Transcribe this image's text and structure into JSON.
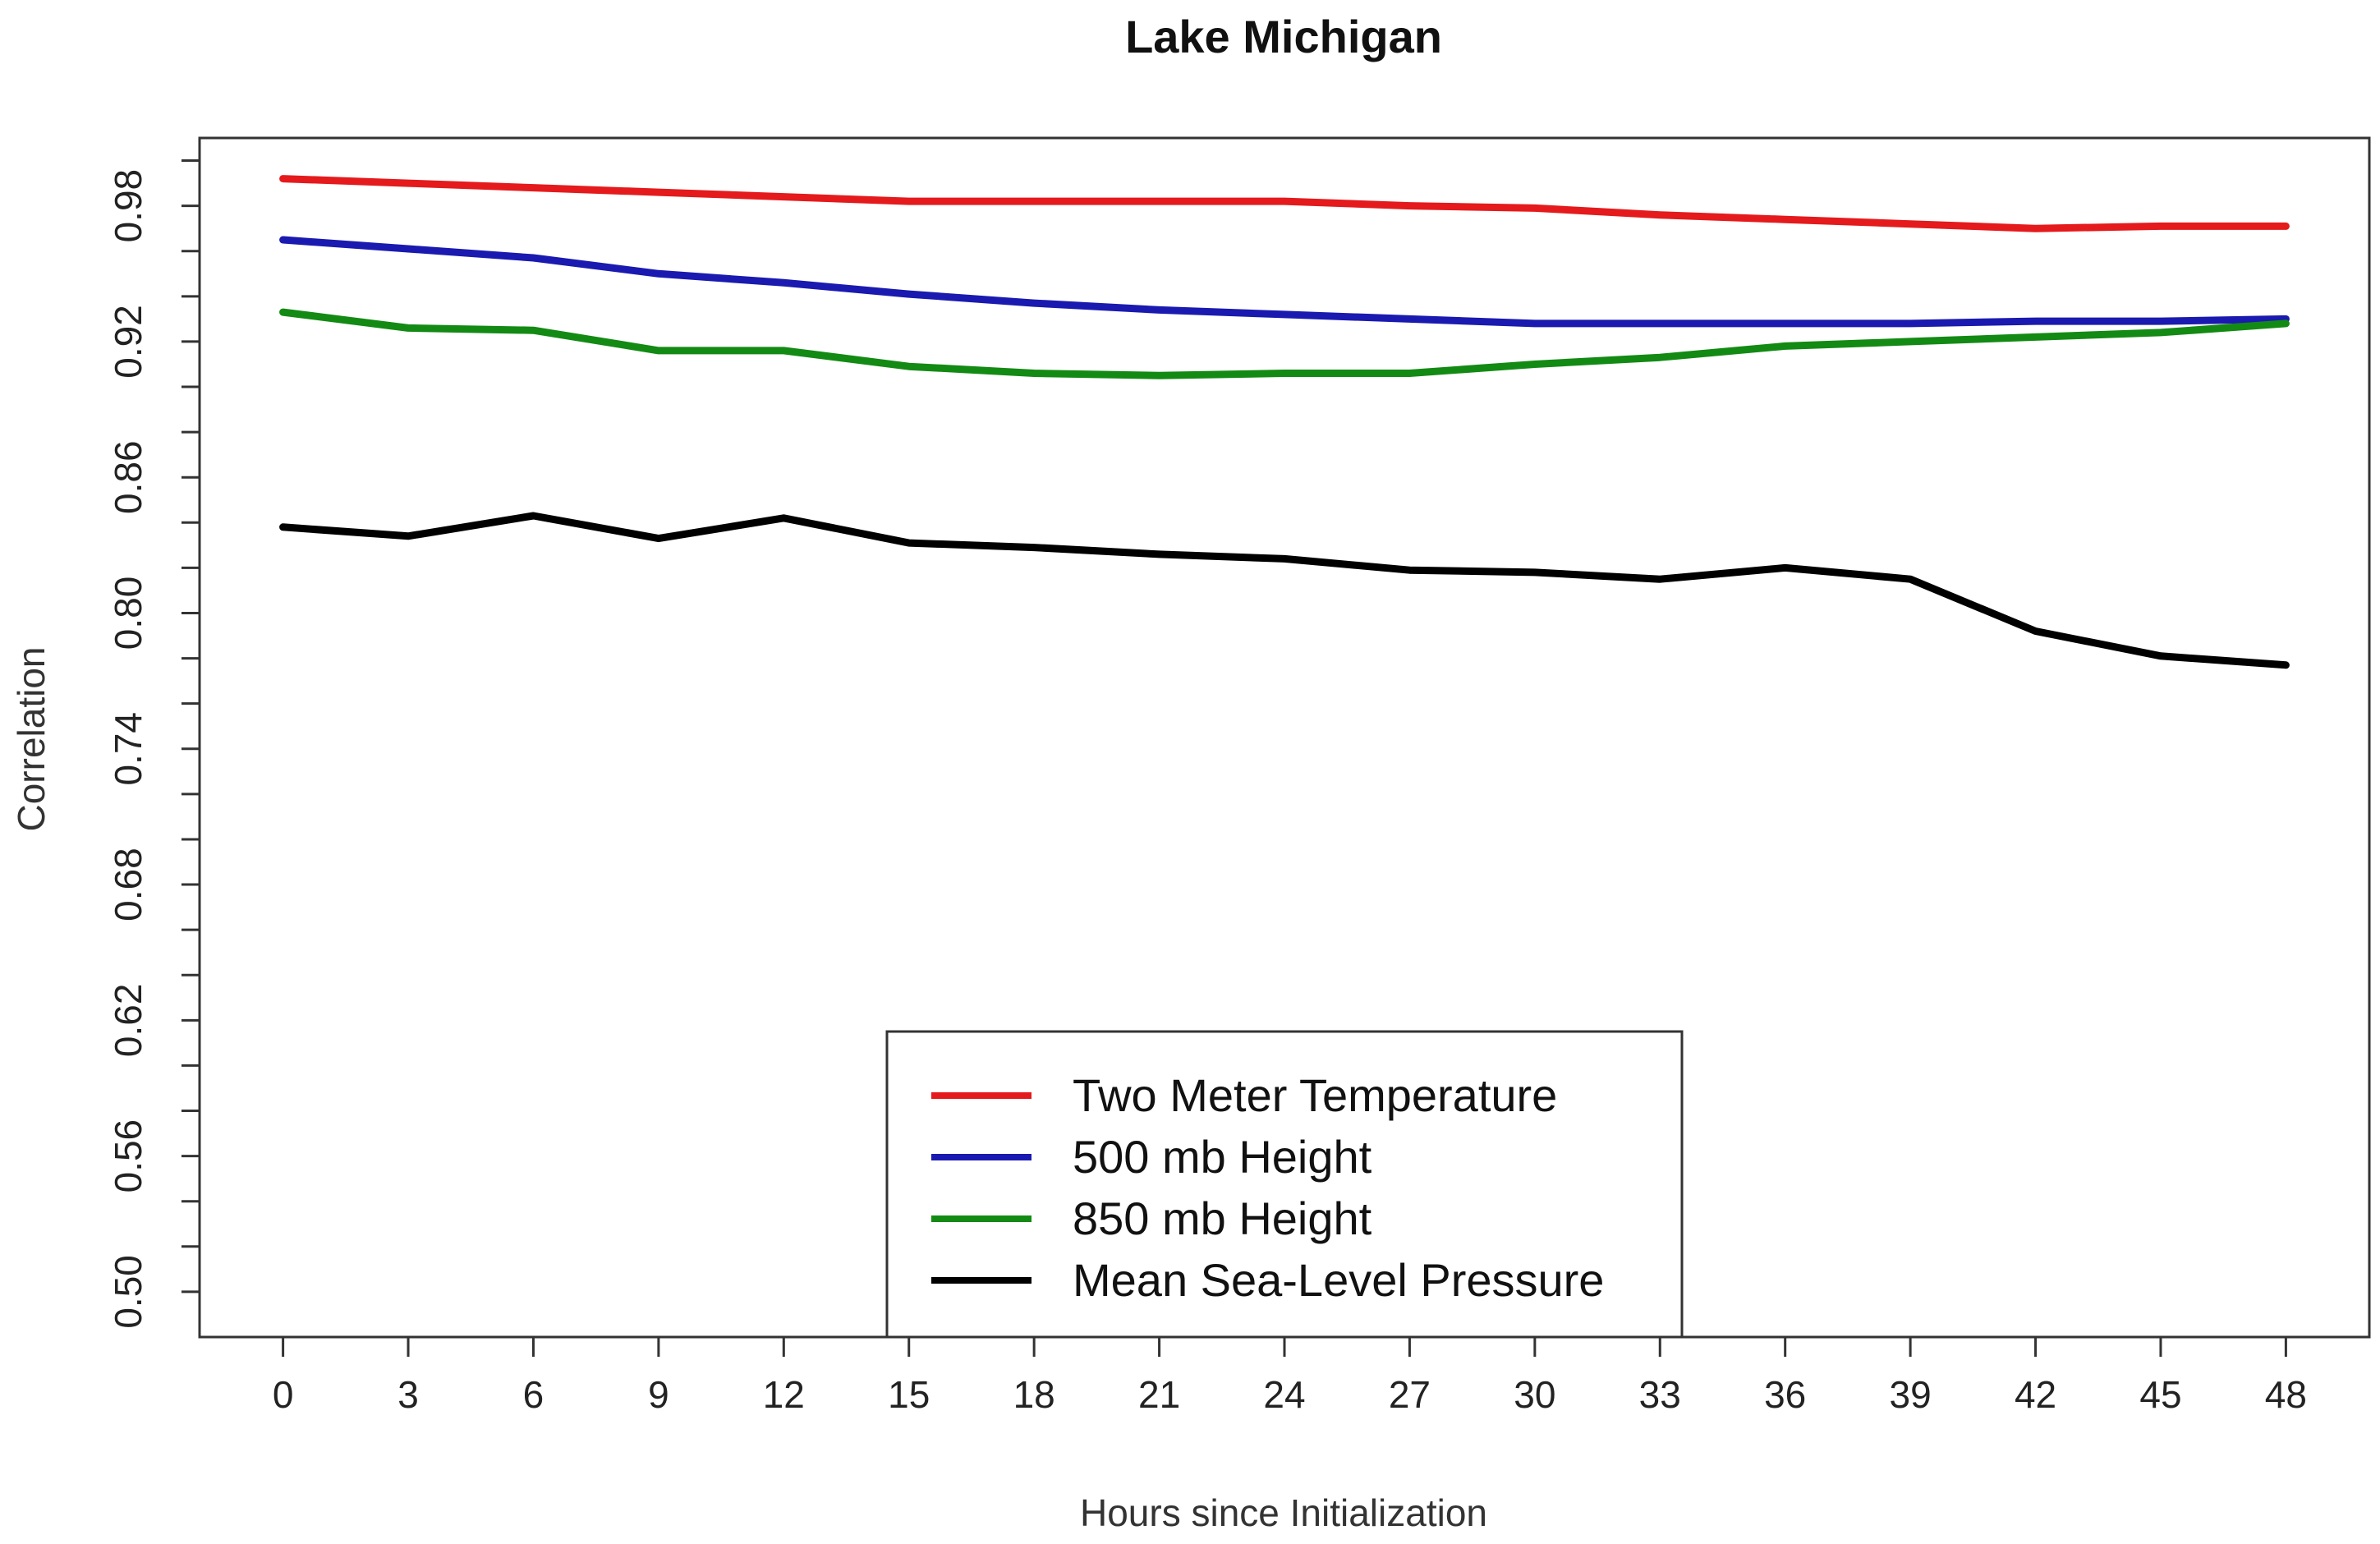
{
  "chart_data": {
    "type": "line",
    "title": "Lake Michigan",
    "xlabel": "Hours since Initialization",
    "ylabel": "Correlation",
    "x": [
      0,
      3,
      6,
      9,
      12,
      15,
      18,
      21,
      24,
      27,
      30,
      33,
      36,
      39,
      42,
      45,
      48
    ],
    "xlim": [
      -2,
      50
    ],
    "ylim": [
      0.48,
      1.01
    ],
    "xticks": [
      0,
      3,
      6,
      9,
      12,
      15,
      18,
      21,
      24,
      27,
      30,
      33,
      36,
      39,
      42,
      45,
      48
    ],
    "xtick_labels": [
      "0",
      "3",
      "6",
      "9",
      "12",
      "15",
      "18",
      "21",
      "24",
      "27",
      "30",
      "33",
      "36",
      "39",
      "42",
      "45",
      "48"
    ],
    "yticks_major": [
      0.5,
      0.56,
      0.62,
      0.68,
      0.74,
      0.8,
      0.86,
      0.92,
      0.98
    ],
    "ytick_labels": [
      "0.50",
      "0.56",
      "0.62",
      "0.68",
      "0.74",
      "0.80",
      "0.86",
      "0.92",
      "0.98"
    ],
    "yticks_minor": [
      0.52,
      0.54,
      0.58,
      0.6,
      0.64,
      0.66,
      0.7,
      0.72,
      0.76,
      0.78,
      0.82,
      0.84,
      0.88,
      0.9,
      0.94,
      0.96,
      1.0
    ],
    "legend_position": "bottom-center",
    "series": [
      {
        "name": "Two Meter Temperature",
        "color": "#e41a1c",
        "values": [
          0.992,
          0.99,
          0.988,
          0.986,
          0.984,
          0.982,
          0.982,
          0.982,
          0.982,
          0.98,
          0.979,
          0.976,
          0.974,
          0.972,
          0.97,
          0.971,
          0.971
        ]
      },
      {
        "name": "500 mb Height",
        "color": "#1a1ab0",
        "values": [
          0.965,
          0.961,
          0.957,
          0.95,
          0.946,
          0.941,
          0.937,
          0.934,
          0.932,
          0.93,
          0.928,
          0.928,
          0.928,
          0.928,
          0.929,
          0.929,
          0.93
        ]
      },
      {
        "name": "850 mb Height",
        "color": "#138a13",
        "values": [
          0.933,
          0.926,
          0.925,
          0.916,
          0.916,
          0.909,
          0.906,
          0.905,
          0.906,
          0.906,
          0.91,
          0.913,
          0.918,
          0.92,
          0.922,
          0.924,
          0.928
        ]
      },
      {
        "name": "Mean Sea-Level Pressure",
        "color": "#000000",
        "values": [
          0.838,
          0.834,
          0.843,
          0.833,
          0.842,
          0.831,
          0.829,
          0.826,
          0.824,
          0.819,
          0.818,
          0.815,
          0.82,
          0.815,
          0.792,
          0.781,
          0.777
        ]
      }
    ]
  }
}
